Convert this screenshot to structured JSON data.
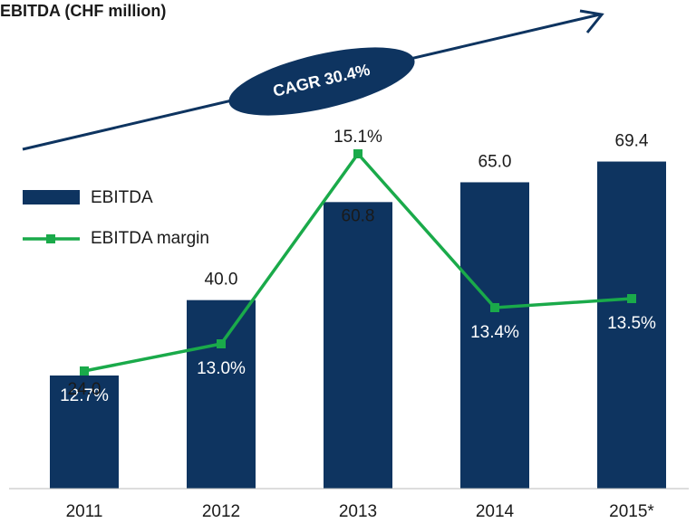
{
  "chart_data": {
    "type": "bar",
    "title": "EBITDA (CHF million)",
    "annotation": "CAGR 30.4%",
    "categories": [
      "2011",
      "2012",
      "2013",
      "2014",
      "2015*"
    ],
    "series": [
      {
        "name": "EBITDA",
        "color": "#0e3460",
        "values": [
          24.0,
          40.0,
          60.8,
          65.0,
          69.4
        ],
        "value_labels": [
          "24.0",
          "40.0",
          "60.8",
          "65.0",
          "69.4"
        ]
      },
      {
        "name": "EBITDA margin",
        "color": "#1aaa4a",
        "type": "line",
        "axis": "y2",
        "values": [
          12.7,
          13.0,
          15.1,
          13.4,
          13.5
        ],
        "value_labels": [
          "12.7%",
          "13.0%",
          "15.1%",
          "13.4%",
          "13.5%"
        ]
      }
    ],
    "ylim": [
      0,
      96
    ],
    "y2lim": [
      11.4,
      16.4
    ],
    "legend": "left"
  }
}
